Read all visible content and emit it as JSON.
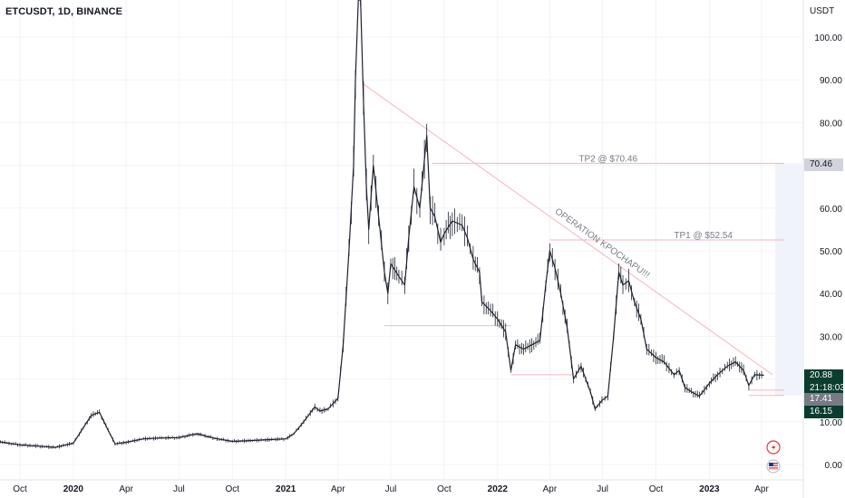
{
  "header": {
    "symbol": "ETCUSDT, 1D, BINANCE"
  },
  "axis": {
    "unit": "USDT"
  },
  "price_tags": {
    "tp2": "70.46",
    "last": "20.88",
    "countdown": "21:18:03",
    "level1": "17.41",
    "level2": "16.15"
  },
  "annotations": {
    "tp2": "TP2 @ $70.46",
    "tp1": "TP1 @ $52.54",
    "operation": "OPERATION KPOCHAPU!!!"
  },
  "icons": [
    "lightning-icon",
    "us-flag-icon"
  ],
  "colors": {
    "up": "#26a69a",
    "down": "#131722",
    "candle": "#1e222d",
    "trendline": "#f7b3c0",
    "tp_line": "#f7b3c0",
    "last_price_bg": "#0b3d2e",
    "level_bg": "#0b3d2e",
    "level1_bg": "#787b86",
    "tp_tag_bg": "#d1d4dc",
    "grid": "#f0f3fa"
  },
  "chart_data": {
    "type": "line",
    "title": "ETCUSDT, 1D, BINANCE",
    "ylabel": "USDT",
    "ylim": [
      0,
      105
    ],
    "y_ticks": [
      0,
      10,
      20,
      30,
      40,
      50,
      60,
      70,
      80,
      90,
      100
    ],
    "y_tick_labels": [
      "0.00",
      "10.00",
      "20.00",
      "30.00",
      "40.00",
      "50.00",
      "60.00",
      "70.00",
      "80.00",
      "90.00",
      "100.00"
    ],
    "x_ticks": [
      "Oct",
      "2020",
      "Apr",
      "Jul",
      "Oct",
      "2021",
      "Apr",
      "Jul",
      "Oct",
      "2022",
      "Apr",
      "Jul",
      "Oct",
      "2023",
      "Apr"
    ],
    "x_tick_dates": [
      "2019-10-01",
      "2020-01-01",
      "2020-04-01",
      "2020-07-01",
      "2020-10-01",
      "2021-01-01",
      "2021-04-01",
      "2021-07-01",
      "2021-10-01",
      "2022-01-01",
      "2022-04-01",
      "2022-07-01",
      "2022-10-01",
      "2023-01-01",
      "2023-04-01"
    ],
    "series": [
      {
        "x": [
          "2019-08-01",
          "2019-09-01",
          "2019-10-01",
          "2019-11-01",
          "2019-12-01",
          "2020-01-01",
          "2020-02-01",
          "2020-02-15",
          "2020-03-01",
          "2020-03-13",
          "2020-04-01",
          "2020-05-01",
          "2020-06-01",
          "2020-07-01",
          "2020-08-01",
          "2020-09-01",
          "2020-10-01",
          "2020-11-01",
          "2020-12-01",
          "2021-01-01",
          "2021-01-15",
          "2021-02-01",
          "2021-02-20",
          "2021-03-01",
          "2021-03-15",
          "2021-04-01",
          "2021-04-10",
          "2021-04-20",
          "2021-04-28",
          "2021-05-01",
          "2021-05-06",
          "2021-05-10",
          "2021-05-15",
          "2021-05-20",
          "2021-05-24",
          "2021-06-01",
          "2021-06-10",
          "2021-06-20",
          "2021-06-26",
          "2021-07-01",
          "2021-07-15",
          "2021-07-25",
          "2021-08-01",
          "2021-08-10",
          "2021-08-20",
          "2021-09-01",
          "2021-09-07",
          "2021-09-15",
          "2021-09-25",
          "2021-10-01",
          "2021-10-15",
          "2021-11-01",
          "2021-11-10",
          "2021-11-20",
          "2021-12-01",
          "2021-12-05",
          "2021-12-20",
          "2022-01-01",
          "2022-01-15",
          "2022-01-24",
          "2022-02-01",
          "2022-02-15",
          "2022-03-01",
          "2022-03-15",
          "2022-03-25",
          "2022-04-01",
          "2022-04-10",
          "2022-04-20",
          "2022-05-01",
          "2022-05-12",
          "2022-05-25",
          "2022-06-10",
          "2022-06-18",
          "2022-06-30",
          "2022-07-10",
          "2022-07-20",
          "2022-07-29",
          "2022-08-05",
          "2022-08-15",
          "2022-08-25",
          "2022-09-05",
          "2022-09-15",
          "2022-10-01",
          "2022-10-15",
          "2022-11-01",
          "2022-11-10",
          "2022-11-20",
          "2022-12-01",
          "2022-12-15",
          "2023-01-01",
          "2023-01-15",
          "2023-02-01",
          "2023-02-15",
          "2023-03-01",
          "2023-03-10",
          "2023-03-20",
          "2023-04-05"
        ],
        "y": [
          6.0,
          5.2,
          4.6,
          4.3,
          4.0,
          5.0,
          11.5,
          12.2,
          8.0,
          4.8,
          5.2,
          6.0,
          6.2,
          6.3,
          7.2,
          6.1,
          5.4,
          5.6,
          5.8,
          6.0,
          7.2,
          10.0,
          13.5,
          12.5,
          13.0,
          15.5,
          28.0,
          50.0,
          70.0,
          90.0,
          120.0,
          110.0,
          85.0,
          65.0,
          55.0,
          70.0,
          58.0,
          45.0,
          40.0,
          47.0,
          44.0,
          42.0,
          53.0,
          65.0,
          60.0,
          77.0,
          60.0,
          58.0,
          52.0,
          54.0,
          57.0,
          56.0,
          53.0,
          48.0,
          45.0,
          38.0,
          36.0,
          34.0,
          31.0,
          22.0,
          28.0,
          27.0,
          28.0,
          29.0,
          42.0,
          50.0,
          46.0,
          40.0,
          32.0,
          20.0,
          23.0,
          17.0,
          13.0,
          15.0,
          16.0,
          30.0,
          45.0,
          42.0,
          43.0,
          38.0,
          34.0,
          27.0,
          25.0,
          24.0,
          21.0,
          22.0,
          18.0,
          17.0,
          16.0,
          19.0,
          21.0,
          23.0,
          24.0,
          22.0,
          18.5,
          21.0,
          20.9
        ]
      }
    ],
    "horizontal_levels": [
      {
        "label": "TP2 @ $70.46",
        "value": 70.46,
        "from": "2021-09-10",
        "to": "2023-05-10"
      },
      {
        "label": "TP1 @ $52.54",
        "value": 52.54,
        "from": "2022-04-01",
        "to": "2023-05-10"
      },
      {
        "value": 32.5,
        "from": "2021-06-20",
        "to": "2022-01-24"
      },
      {
        "value": 21.0,
        "from": "2022-01-24",
        "to": "2022-05-12"
      },
      {
        "value": 17.41,
        "from": "2023-03-10",
        "to": "2023-05-10"
      },
      {
        "value": 16.15,
        "from": "2023-03-10",
        "to": "2023-05-10"
      }
    ],
    "trendline": {
      "label": "OPERATION KPOCHAPU!!!",
      "from": [
        "2021-05-15",
        89.0
      ],
      "to": [
        "2023-04-20",
        21.0
      ]
    },
    "target_range": [
      16.15,
      70.46
    ]
  }
}
